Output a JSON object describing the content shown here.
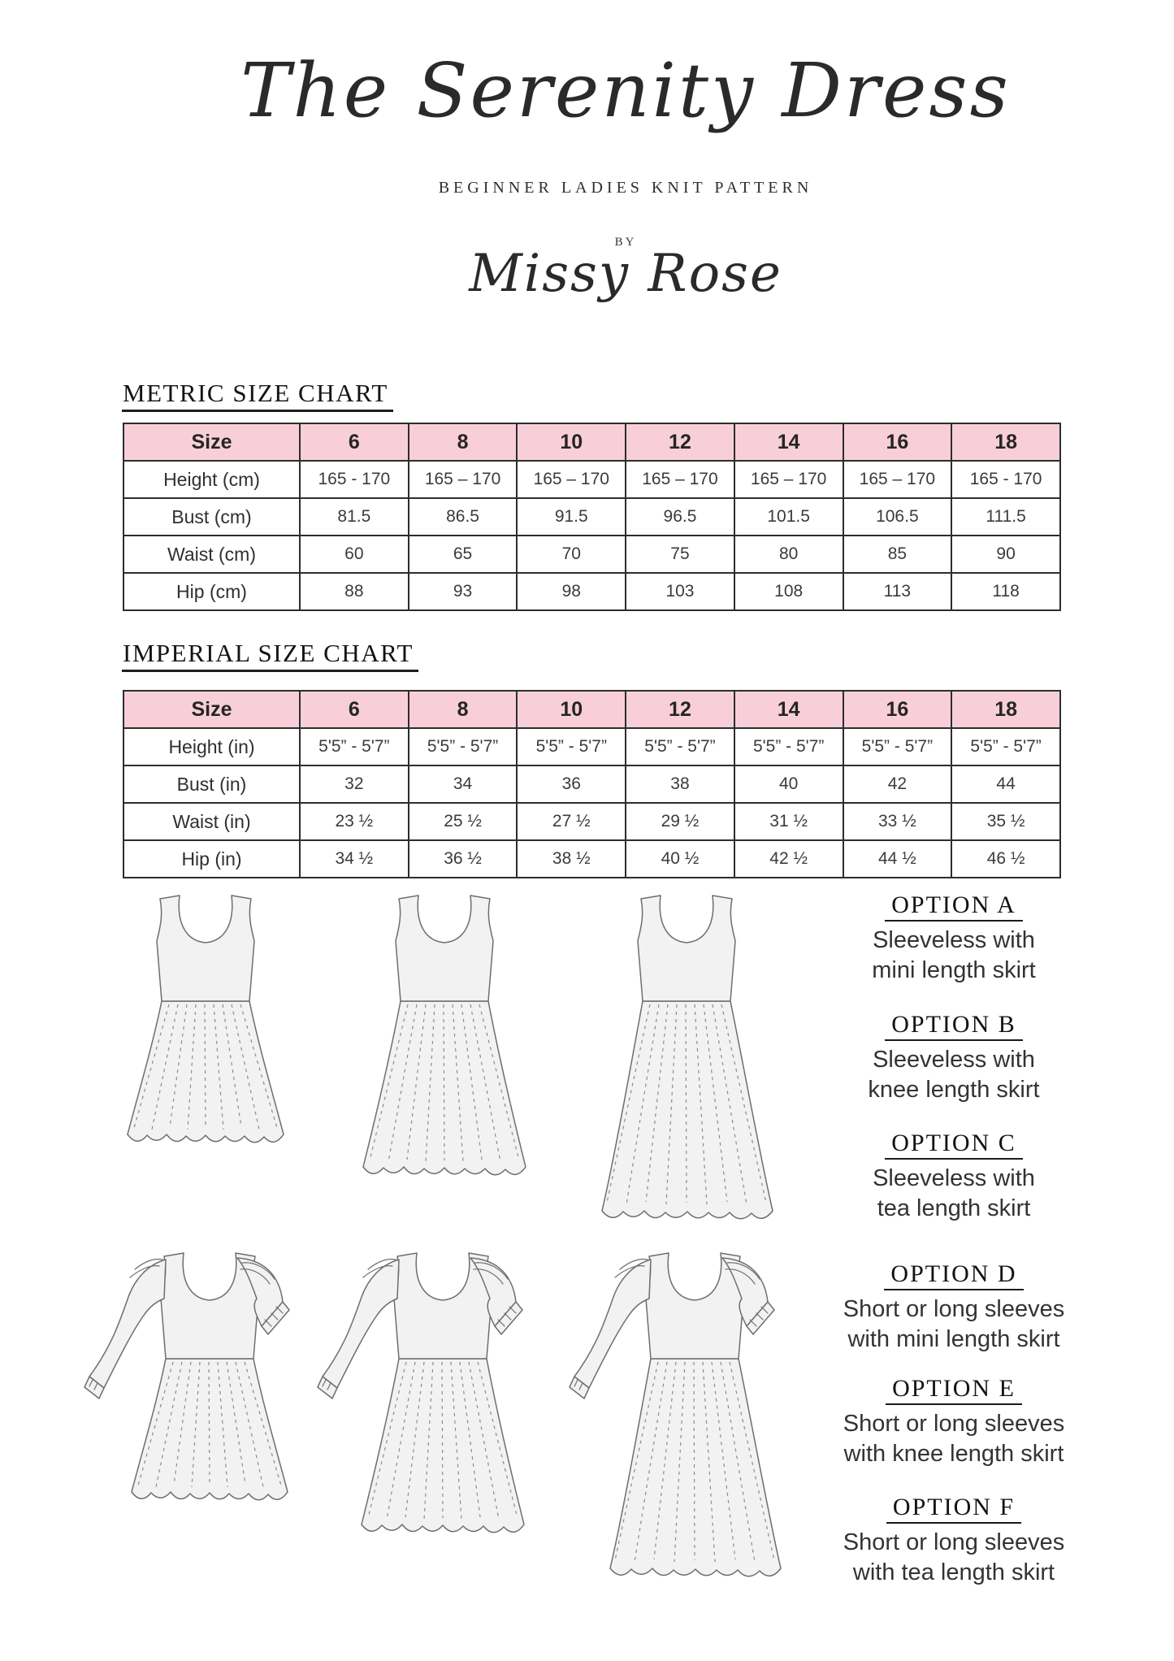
{
  "header": {
    "title": "The Serenity Dress",
    "subtitle": "BEGINNER LADIES KNIT PATTERN",
    "by_label": "BY",
    "author": "Missy Rose"
  },
  "metric_chart": {
    "heading": "METRIC SIZE CHART",
    "columns": [
      "Size",
      "6",
      "8",
      "10",
      "12",
      "14",
      "16",
      "18"
    ],
    "rows": [
      [
        "Height (cm)",
        "165 - 170",
        "165 – 170",
        "165 – 170",
        "165 – 170",
        "165 – 170",
        "165 – 170",
        "165 - 170"
      ],
      [
        "Bust (cm)",
        "81.5",
        "86.5",
        "91.5",
        "96.5",
        "101.5",
        "106.5",
        "111.5"
      ],
      [
        "Waist (cm)",
        "60",
        "65",
        "70",
        "75",
        "80",
        "85",
        "90"
      ],
      [
        "Hip (cm)",
        "88",
        "93",
        "98",
        "103",
        "108",
        "113",
        "118"
      ]
    ]
  },
  "imperial_chart": {
    "heading": "IMPERIAL SIZE CHART",
    "columns": [
      "Size",
      "6",
      "8",
      "10",
      "12",
      "14",
      "16",
      "18"
    ],
    "rows": [
      [
        "Height (in)",
        "5'5” - 5'7”",
        "5'5” - 5'7”",
        "5'5” - 5'7”",
        "5'5” - 5'7”",
        "5'5” - 5'7”",
        "5'5” - 5'7”",
        "5'5” - 5'7”"
      ],
      [
        "Bust (in)",
        "32",
        "34",
        "36",
        "38",
        "40",
        "42",
        "44"
      ],
      [
        "Waist (in)",
        "23 ½",
        "25 ½",
        "27 ½",
        "29 ½",
        "31 ½",
        "33 ½",
        "35 ½"
      ],
      [
        "Hip (in)",
        "34 ½",
        "36 ½",
        "38 ½",
        "40 ½",
        "42 ½",
        "44 ½",
        "46 ½"
      ]
    ]
  },
  "options": [
    {
      "label": "OPTION A",
      "lines": [
        "Sleeveless with",
        "mini length skirt"
      ]
    },
    {
      "label": "OPTION B",
      "lines": [
        "Sleeveless with",
        "knee length skirt"
      ]
    },
    {
      "label": "OPTION C",
      "lines": [
        "Sleeveless with",
        "tea length skirt"
      ]
    },
    {
      "label": "OPTION D",
      "lines": [
        "Short or long sleeves",
        "with mini length skirt"
      ]
    },
    {
      "label": "OPTION E",
      "lines": [
        "Short or long sleeves",
        "with knee length skirt"
      ]
    },
    {
      "label": "OPTION F",
      "lines": [
        "Short or long sleeves",
        "with tea length skirt"
      ]
    }
  ],
  "colors": {
    "header_pink": "#f8cfd9",
    "table_border": "#2d2d2d",
    "heading_text": "#141414",
    "body_text": "#333333",
    "dress_fill": "#f2f2f3",
    "dress_outline": "#6e6e6e"
  }
}
